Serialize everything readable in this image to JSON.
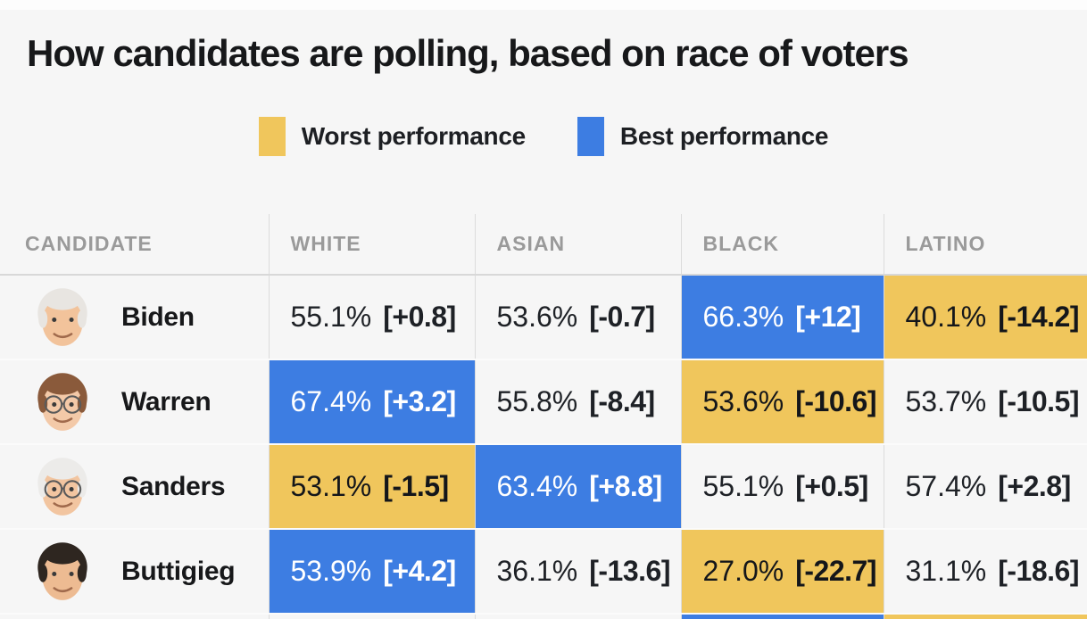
{
  "header": {
    "title": "How candidates are polling, based on race of voters"
  },
  "legend": {
    "items": [
      {
        "id": "worst",
        "label": "Worst performance",
        "color": "#F0C65C"
      },
      {
        "id": "best",
        "label": "Best performance",
        "color": "#3D7DE2"
      }
    ]
  },
  "colors": {
    "page_bg": "#f6f6f6",
    "worst_bg": "#F0C65C",
    "worst_text": "#14161a",
    "best_bg": "#3D7DE2",
    "best_text": "#ffffff",
    "header_text": "#9a9a9a",
    "body_text": "#1e2126"
  },
  "table": {
    "columns": [
      {
        "key": "candidate",
        "label": "CANDIDATE"
      },
      {
        "key": "white",
        "label": "WHITE"
      },
      {
        "key": "asian",
        "label": "ASIAN"
      },
      {
        "key": "black",
        "label": "BLACK"
      },
      {
        "key": "latino",
        "label": "LATINO"
      }
    ],
    "rows": [
      {
        "candidate": "Biden",
        "avatar": {
          "hair": "#e8e5e1",
          "skin": "#f2c39b",
          "glasses": false
        },
        "cells": [
          {
            "value": "55.1%",
            "delta": "[+0.8]",
            "highlight": "none"
          },
          {
            "value": "53.6%",
            "delta": "[-0.7]",
            "highlight": "none"
          },
          {
            "value": "66.3%",
            "delta": "[+12]",
            "highlight": "best"
          },
          {
            "value": "40.1%",
            "delta": "[-14.2]",
            "highlight": "worst"
          }
        ]
      },
      {
        "candidate": "Warren",
        "avatar": {
          "hair": "#8a5a3b",
          "skin": "#f3c9a8",
          "glasses": true
        },
        "cells": [
          {
            "value": "67.4%",
            "delta": "[+3.2]",
            "highlight": "best"
          },
          {
            "value": "55.8%",
            "delta": "[-8.4]",
            "highlight": "none"
          },
          {
            "value": "53.6%",
            "delta": "[-10.6]",
            "highlight": "worst"
          },
          {
            "value": "53.7%",
            "delta": "[-10.5]",
            "highlight": "none"
          }
        ]
      },
      {
        "candidate": "Sanders",
        "avatar": {
          "hair": "#ecebe9",
          "skin": "#f2c5a0",
          "glasses": true
        },
        "cells": [
          {
            "value": "53.1%",
            "delta": "[-1.5]",
            "highlight": "worst"
          },
          {
            "value": "63.4%",
            "delta": "[+8.8]",
            "highlight": "best"
          },
          {
            "value": "55.1%",
            "delta": "[+0.5]",
            "highlight": "none"
          },
          {
            "value": "57.4%",
            "delta": "[+2.8]",
            "highlight": "none"
          }
        ]
      },
      {
        "candidate": "Buttigieg",
        "avatar": {
          "hair": "#2e2620",
          "skin": "#edbb92",
          "glasses": false
        },
        "cells": [
          {
            "value": "53.9%",
            "delta": "[+4.2]",
            "highlight": "best"
          },
          {
            "value": "36.1%",
            "delta": "[-13.6]",
            "highlight": "none"
          },
          {
            "value": "27.0%",
            "delta": "[-22.7]",
            "highlight": "worst"
          },
          {
            "value": "31.1%",
            "delta": "[-18.6]",
            "highlight": "none"
          }
        ]
      }
    ],
    "partial_row_highlights": [
      "none",
      "none",
      "best",
      "worst"
    ]
  },
  "chart_data": {
    "type": "table",
    "title": "How candidates are polling, based on race of voters",
    "legend": [
      {
        "label": "Worst performance",
        "color": "#F0C65C",
        "meaning": "worst performance cell"
      },
      {
        "label": "Best performance",
        "color": "#3D7DE2",
        "meaning": "best performance cell"
      }
    ],
    "columns": [
      "CANDIDATE",
      "WHITE",
      "ASIAN",
      "BLACK",
      "LATINO"
    ],
    "rows": [
      {
        "candidate": "Biden",
        "white_pct": 55.1,
        "white_delta": 0.8,
        "asian_pct": 53.6,
        "asian_delta": -0.7,
        "black_pct": 66.3,
        "black_delta": 12,
        "latino_pct": 40.1,
        "latino_delta": -14.2,
        "best": "black",
        "worst": "latino"
      },
      {
        "candidate": "Warren",
        "white_pct": 67.4,
        "white_delta": 3.2,
        "asian_pct": 55.8,
        "asian_delta": -8.4,
        "black_pct": 53.6,
        "black_delta": -10.6,
        "latino_pct": 53.7,
        "latino_delta": -10.5,
        "best": "white",
        "worst": "black"
      },
      {
        "candidate": "Sanders",
        "white_pct": 53.1,
        "white_delta": -1.5,
        "asian_pct": 63.4,
        "asian_delta": 8.8,
        "black_pct": 55.1,
        "black_delta": 0.5,
        "latino_pct": 57.4,
        "latino_delta": 2.8,
        "best": "asian",
        "worst": "white"
      },
      {
        "candidate": "Buttigieg",
        "white_pct": 53.9,
        "white_delta": 4.2,
        "asian_pct": 36.1,
        "asian_delta": -13.6,
        "black_pct": 27.0,
        "black_delta": -22.7,
        "latino_pct": 31.1,
        "latino_delta": -18.6,
        "best": "white",
        "worst": "black"
      }
    ]
  }
}
